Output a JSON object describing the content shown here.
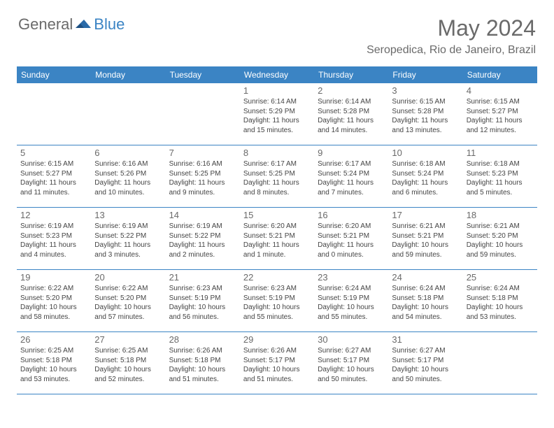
{
  "logo": {
    "part1": "General",
    "part2": "Blue"
  },
  "title": "May 2024",
  "location": "Seropedica, Rio de Janeiro, Brazil",
  "colors": {
    "header_bg": "#3b84c4",
    "header_text": "#ffffff",
    "text_gray": "#6a6a6a",
    "info_text": "#444444",
    "border": "#3b84c4"
  },
  "day_labels": [
    "Sunday",
    "Monday",
    "Tuesday",
    "Wednesday",
    "Thursday",
    "Friday",
    "Saturday"
  ],
  "weeks": [
    [
      {
        "n": "",
        "sr": "",
        "ss": "",
        "dl": ""
      },
      {
        "n": "",
        "sr": "",
        "ss": "",
        "dl": ""
      },
      {
        "n": "",
        "sr": "",
        "ss": "",
        "dl": ""
      },
      {
        "n": "1",
        "sr": "Sunrise: 6:14 AM",
        "ss": "Sunset: 5:29 PM",
        "dl": "Daylight: 11 hours and 15 minutes."
      },
      {
        "n": "2",
        "sr": "Sunrise: 6:14 AM",
        "ss": "Sunset: 5:28 PM",
        "dl": "Daylight: 11 hours and 14 minutes."
      },
      {
        "n": "3",
        "sr": "Sunrise: 6:15 AM",
        "ss": "Sunset: 5:28 PM",
        "dl": "Daylight: 11 hours and 13 minutes."
      },
      {
        "n": "4",
        "sr": "Sunrise: 6:15 AM",
        "ss": "Sunset: 5:27 PM",
        "dl": "Daylight: 11 hours and 12 minutes."
      }
    ],
    [
      {
        "n": "5",
        "sr": "Sunrise: 6:15 AM",
        "ss": "Sunset: 5:27 PM",
        "dl": "Daylight: 11 hours and 11 minutes."
      },
      {
        "n": "6",
        "sr": "Sunrise: 6:16 AM",
        "ss": "Sunset: 5:26 PM",
        "dl": "Daylight: 11 hours and 10 minutes."
      },
      {
        "n": "7",
        "sr": "Sunrise: 6:16 AM",
        "ss": "Sunset: 5:25 PM",
        "dl": "Daylight: 11 hours and 9 minutes."
      },
      {
        "n": "8",
        "sr": "Sunrise: 6:17 AM",
        "ss": "Sunset: 5:25 PM",
        "dl": "Daylight: 11 hours and 8 minutes."
      },
      {
        "n": "9",
        "sr": "Sunrise: 6:17 AM",
        "ss": "Sunset: 5:24 PM",
        "dl": "Daylight: 11 hours and 7 minutes."
      },
      {
        "n": "10",
        "sr": "Sunrise: 6:18 AM",
        "ss": "Sunset: 5:24 PM",
        "dl": "Daylight: 11 hours and 6 minutes."
      },
      {
        "n": "11",
        "sr": "Sunrise: 6:18 AM",
        "ss": "Sunset: 5:23 PM",
        "dl": "Daylight: 11 hours and 5 minutes."
      }
    ],
    [
      {
        "n": "12",
        "sr": "Sunrise: 6:19 AM",
        "ss": "Sunset: 5:23 PM",
        "dl": "Daylight: 11 hours and 4 minutes."
      },
      {
        "n": "13",
        "sr": "Sunrise: 6:19 AM",
        "ss": "Sunset: 5:22 PM",
        "dl": "Daylight: 11 hours and 3 minutes."
      },
      {
        "n": "14",
        "sr": "Sunrise: 6:19 AM",
        "ss": "Sunset: 5:22 PM",
        "dl": "Daylight: 11 hours and 2 minutes."
      },
      {
        "n": "15",
        "sr": "Sunrise: 6:20 AM",
        "ss": "Sunset: 5:21 PM",
        "dl": "Daylight: 11 hours and 1 minute."
      },
      {
        "n": "16",
        "sr": "Sunrise: 6:20 AM",
        "ss": "Sunset: 5:21 PM",
        "dl": "Daylight: 11 hours and 0 minutes."
      },
      {
        "n": "17",
        "sr": "Sunrise: 6:21 AM",
        "ss": "Sunset: 5:21 PM",
        "dl": "Daylight: 10 hours and 59 minutes."
      },
      {
        "n": "18",
        "sr": "Sunrise: 6:21 AM",
        "ss": "Sunset: 5:20 PM",
        "dl": "Daylight: 10 hours and 59 minutes."
      }
    ],
    [
      {
        "n": "19",
        "sr": "Sunrise: 6:22 AM",
        "ss": "Sunset: 5:20 PM",
        "dl": "Daylight: 10 hours and 58 minutes."
      },
      {
        "n": "20",
        "sr": "Sunrise: 6:22 AM",
        "ss": "Sunset: 5:20 PM",
        "dl": "Daylight: 10 hours and 57 minutes."
      },
      {
        "n": "21",
        "sr": "Sunrise: 6:23 AM",
        "ss": "Sunset: 5:19 PM",
        "dl": "Daylight: 10 hours and 56 minutes."
      },
      {
        "n": "22",
        "sr": "Sunrise: 6:23 AM",
        "ss": "Sunset: 5:19 PM",
        "dl": "Daylight: 10 hours and 55 minutes."
      },
      {
        "n": "23",
        "sr": "Sunrise: 6:24 AM",
        "ss": "Sunset: 5:19 PM",
        "dl": "Daylight: 10 hours and 55 minutes."
      },
      {
        "n": "24",
        "sr": "Sunrise: 6:24 AM",
        "ss": "Sunset: 5:18 PM",
        "dl": "Daylight: 10 hours and 54 minutes."
      },
      {
        "n": "25",
        "sr": "Sunrise: 6:24 AM",
        "ss": "Sunset: 5:18 PM",
        "dl": "Daylight: 10 hours and 53 minutes."
      }
    ],
    [
      {
        "n": "26",
        "sr": "Sunrise: 6:25 AM",
        "ss": "Sunset: 5:18 PM",
        "dl": "Daylight: 10 hours and 53 minutes."
      },
      {
        "n": "27",
        "sr": "Sunrise: 6:25 AM",
        "ss": "Sunset: 5:18 PM",
        "dl": "Daylight: 10 hours and 52 minutes."
      },
      {
        "n": "28",
        "sr": "Sunrise: 6:26 AM",
        "ss": "Sunset: 5:18 PM",
        "dl": "Daylight: 10 hours and 51 minutes."
      },
      {
        "n": "29",
        "sr": "Sunrise: 6:26 AM",
        "ss": "Sunset: 5:17 PM",
        "dl": "Daylight: 10 hours and 51 minutes."
      },
      {
        "n": "30",
        "sr": "Sunrise: 6:27 AM",
        "ss": "Sunset: 5:17 PM",
        "dl": "Daylight: 10 hours and 50 minutes."
      },
      {
        "n": "31",
        "sr": "Sunrise: 6:27 AM",
        "ss": "Sunset: 5:17 PM",
        "dl": "Daylight: 10 hours and 50 minutes."
      },
      {
        "n": "",
        "sr": "",
        "ss": "",
        "dl": ""
      }
    ]
  ]
}
